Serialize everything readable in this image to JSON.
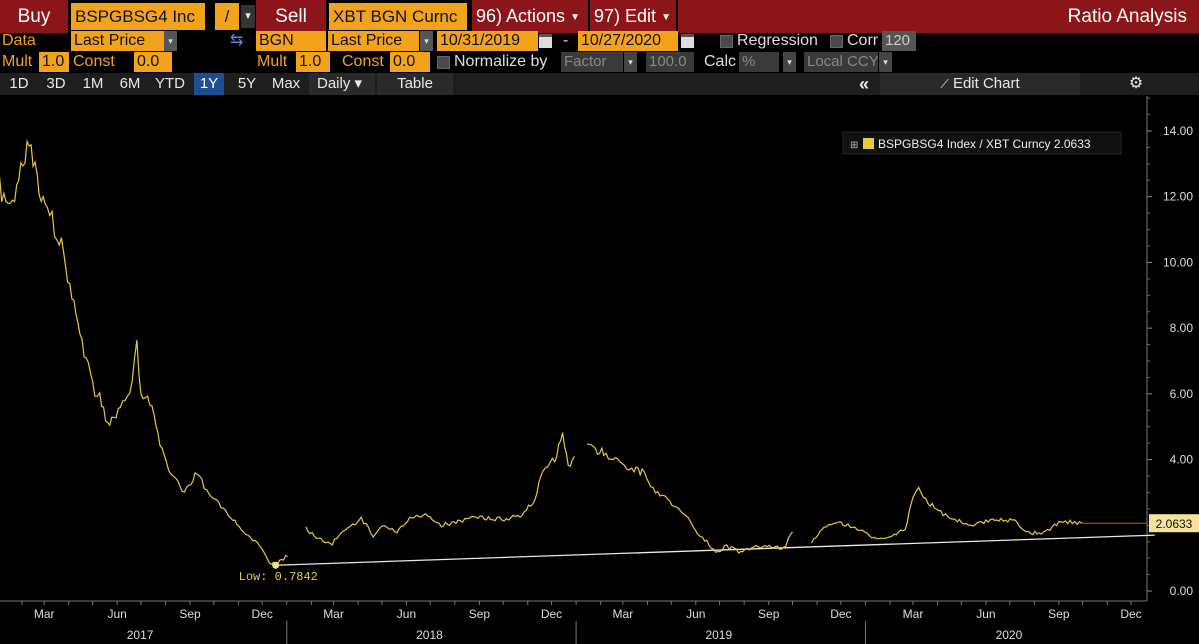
{
  "header": {
    "buy_label": "Buy",
    "buy_ticker": "BSPGBSG4 Inc",
    "operator": "/",
    "sell_label": "Sell",
    "sell_ticker": "XBT BGN Curnc",
    "actions_label": "96) Actions",
    "edit_label": "97) Edit",
    "title": "Ratio Analysis"
  },
  "row2": {
    "data_label": "Data",
    "field1": "Last Price",
    "source": "BGN",
    "field2": "Last Price",
    "start_date": "10/31/2019",
    "dash": "-",
    "end_date": "10/27/2020",
    "regression_label": "Regression",
    "corr_label": "Corr",
    "corr_value": "120"
  },
  "row3": {
    "mult_label": "Mult",
    "mult1": "1.0",
    "const_label": "Const",
    "const1": "0.0",
    "mult_label2": "Mult",
    "mult2": "1.0",
    "const_label2": "Const",
    "const2": "0.0",
    "normalize_label": "Normalize by",
    "normalize_value": "Factor",
    "normalize_amount": "100.0",
    "calc_label": "Calc",
    "calc_value": "%",
    "ccy_value": "Local CCY"
  },
  "toolbar": {
    "ranges": [
      "1D",
      "3D",
      "1M",
      "6M",
      "YTD",
      "1Y",
      "5Y",
      "Max"
    ],
    "selected_range": "1Y",
    "frequency": "Daily ▾",
    "table_label": "Table",
    "collapse_icon": "«",
    "edit_chart_label": "Edit Chart",
    "settings_icon": "gear-icon"
  },
  "colors": {
    "series": "#e8c840",
    "accent_orange": "#f3a21c",
    "header_red": "#8b1518",
    "selected_blue": "#1f4f93",
    "last_line": "#e04030",
    "trend_line": "#e8e8e8"
  },
  "chart_data": {
    "type": "line",
    "legend": "BSPGBSG4 Index / XBT Curncy 2.0633",
    "legend_position": "top-right",
    "ylim": [
      0,
      15
    ],
    "y_ticks": [
      "0.00",
      "2.00",
      "4.00",
      "6.00",
      "8.00",
      "10.00",
      "12.00",
      "14.00"
    ],
    "last_value_label": "2.0633",
    "low_label": "Low: 0.7842",
    "month_ticks": [
      "Mar",
      "Jun",
      "Sep",
      "Dec",
      "Mar",
      "Jun",
      "Sep",
      "Dec",
      "Mar",
      "Jun",
      "Sep",
      "Dec",
      "Mar",
      "Jun",
      "Sep",
      "Dec"
    ],
    "year_labels": [
      "2017",
      "2018",
      "2019",
      "2020"
    ],
    "series": [
      {
        "name": "BSPGBSG4 Index / XBT Curncy",
        "segments": [
          [
            [
              "2017-01-01",
              12.4
            ],
            [
              "2017-01-20",
              11.6
            ],
            [
              "2017-02-10",
              13.8
            ],
            [
              "2017-02-20",
              12.6
            ],
            [
              "2017-03-05",
              11.6
            ],
            [
              "2017-03-20",
              10.8
            ],
            [
              "2017-04-05",
              9.0
            ],
            [
              "2017-04-15",
              7.9
            ],
            [
              "2017-05-01",
              6.2
            ],
            [
              "2017-05-10",
              5.9
            ],
            [
              "2017-05-20",
              5.0
            ],
            [
              "2017-06-05",
              5.5
            ],
            [
              "2017-06-20",
              6.3
            ],
            [
              "2017-06-26",
              7.5
            ],
            [
              "2017-07-01",
              6.1
            ],
            [
              "2017-07-15",
              5.6
            ],
            [
              "2017-07-25",
              4.5
            ],
            [
              "2017-08-05",
              3.6
            ],
            [
              "2017-08-25",
              3.0
            ],
            [
              "2017-09-10",
              3.6
            ],
            [
              "2017-09-25",
              2.9
            ],
            [
              "2017-10-10",
              2.6
            ],
            [
              "2017-10-25",
              2.2
            ],
            [
              "2017-11-10",
              1.7
            ],
            [
              "2017-11-25",
              1.5
            ],
            [
              "2017-12-10",
              0.9
            ],
            [
              "2017-12-18",
              0.7842
            ],
            [
              "2017-12-28",
              1.0
            ],
            [
              "2018-01-02",
              1.05
            ]
          ],
          [
            [
              "2018-01-25",
              1.9
            ],
            [
              "2018-02-10",
              1.6
            ],
            [
              "2018-02-25",
              1.4
            ],
            [
              "2018-03-10",
              1.7
            ],
            [
              "2018-03-25",
              2.0
            ],
            [
              "2018-04-05",
              2.2
            ],
            [
              "2018-04-20",
              1.7
            ],
            [
              "2018-05-05",
              2.0
            ],
            [
              "2018-05-20",
              1.8
            ],
            [
              "2018-06-05",
              2.2
            ],
            [
              "2018-06-25",
              2.3
            ],
            [
              "2018-07-15",
              2.0
            ],
            [
              "2018-08-05",
              2.1
            ],
            [
              "2018-08-25",
              2.3
            ],
            [
              "2018-09-15",
              2.2
            ],
            [
              "2018-10-05",
              2.2
            ],
            [
              "2018-10-25",
              2.3
            ],
            [
              "2018-11-10",
              2.8
            ],
            [
              "2018-11-20",
              3.7
            ],
            [
              "2018-12-05",
              4.0
            ],
            [
              "2018-12-15",
              4.7
            ],
            [
              "2018-12-22",
              3.8
            ],
            [
              "2018-12-30",
              4.1
            ]
          ],
          [
            [
              "2019-01-15",
              4.4
            ],
            [
              "2019-02-05",
              4.2
            ],
            [
              "2019-02-25",
              3.9
            ],
            [
              "2019-03-15",
              3.7
            ],
            [
              "2019-03-28",
              3.6
            ],
            [
              "2019-04-08",
              3.1
            ],
            [
              "2019-04-20",
              2.9
            ],
            [
              "2019-05-05",
              2.6
            ],
            [
              "2019-05-20",
              2.3
            ],
            [
              "2019-06-01",
              1.8
            ],
            [
              "2019-06-15",
              1.5
            ],
            [
              "2019-06-26",
              1.2
            ],
            [
              "2019-07-10",
              1.35
            ],
            [
              "2019-07-25",
              1.2
            ],
            [
              "2019-08-10",
              1.3
            ],
            [
              "2019-08-30",
              1.4
            ],
            [
              "2019-09-20",
              1.3
            ],
            [
              "2019-10-01",
              1.8
            ]
          ],
          [
            [
              "2019-10-25",
              1.5
            ],
            [
              "2019-11-10",
              1.9
            ],
            [
              "2019-11-25",
              2.1
            ],
            [
              "2019-12-10",
              2.0
            ],
            [
              "2019-12-28",
              1.85
            ],
            [
              "2020-01-15",
              1.55
            ],
            [
              "2020-02-01",
              1.6
            ],
            [
              "2020-02-20",
              1.9
            ],
            [
              "2020-03-01",
              2.8
            ],
            [
              "2020-03-08",
              3.1
            ],
            [
              "2020-03-20",
              2.7
            ],
            [
              "2020-04-05",
              2.4
            ],
            [
              "2020-04-20",
              2.2
            ],
            [
              "2020-05-10",
              2.0
            ],
            [
              "2020-06-01",
              2.1
            ],
            [
              "2020-06-20",
              2.2
            ],
            [
              "2020-07-10",
              2.1
            ],
            [
              "2020-07-25",
              1.75
            ],
            [
              "2020-08-15",
              1.8
            ],
            [
              "2020-09-01",
              2.1
            ],
            [
              "2020-09-15",
              2.1
            ],
            [
              "2020-09-30",
              2.0633
            ]
          ]
        ]
      }
    ],
    "last_line": {
      "from": "2020-09-30",
      "to": "2020-12-31",
      "value": 2.0633
    },
    "trend_line": {
      "from": [
        "2017-12-18",
        0.7842
      ],
      "to": [
        "2020-12-31",
        1.7
      ]
    },
    "low_marker": [
      "2017-12-18",
      0.7842
    ]
  }
}
